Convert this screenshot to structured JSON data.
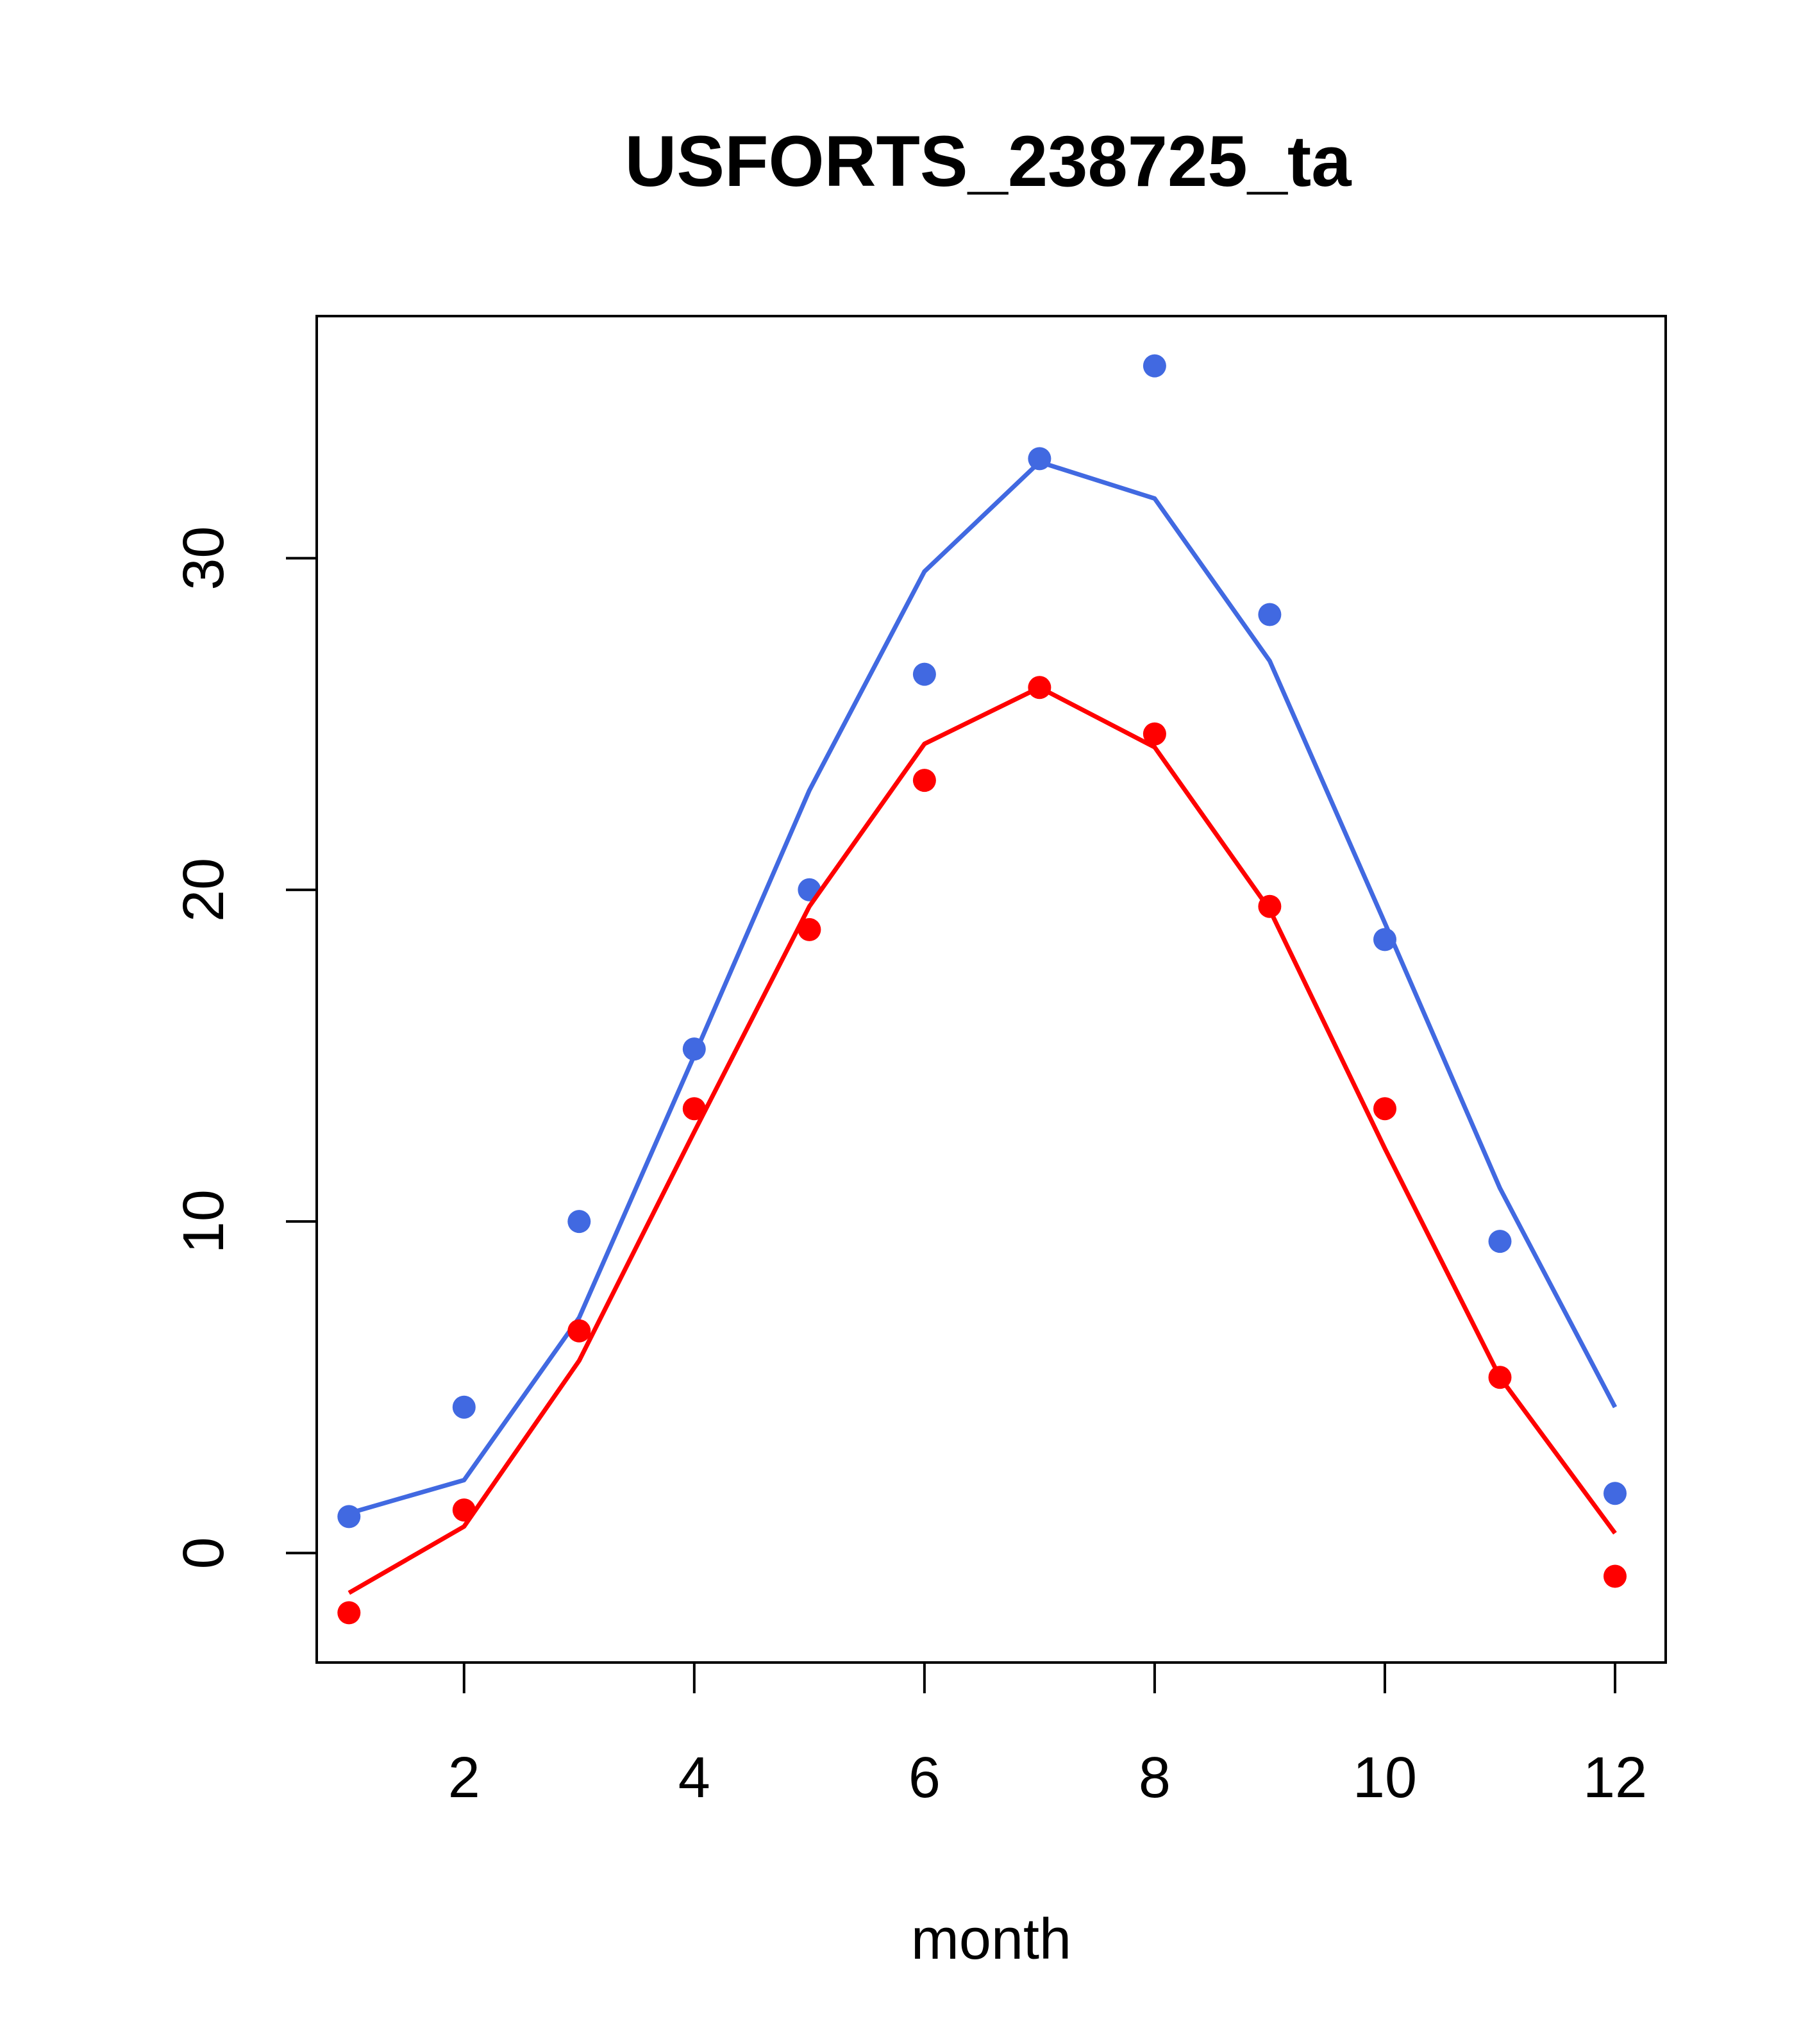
{
  "chart_data": {
    "type": "line",
    "title": "USFORTS_238725_ta",
    "xlabel": "month",
    "ylabel": "",
    "xlim": [
      0.72,
      12.44
    ],
    "ylim": [
      -3.3,
      37.3
    ],
    "x_ticks": [
      2,
      4,
      6,
      8,
      10,
      12
    ],
    "y_ticks": [
      0,
      10,
      20,
      30
    ],
    "grid": false,
    "x": [
      1,
      2,
      3,
      4,
      5,
      6,
      7,
      8,
      9,
      10,
      11,
      12
    ],
    "series": [
      {
        "color": "#4169E1",
        "points": [
          1.1,
          4.4,
          10.0,
          15.2,
          20.0,
          26.5,
          33.0,
          35.8,
          28.3,
          18.5,
          9.4,
          1.8
        ],
        "line": [
          1.2,
          2.2,
          7.1,
          15.0,
          23.0,
          29.6,
          32.9,
          31.8,
          26.9,
          19.0,
          11.0,
          4.4
        ]
      },
      {
        "color": "#FF0000",
        "points": [
          -1.8,
          1.3,
          6.7,
          13.4,
          18.8,
          23.3,
          26.1,
          24.7,
          19.5,
          13.4,
          5.3,
          -0.7
        ],
        "line": [
          -1.2,
          0.8,
          5.8,
          12.7,
          19.5,
          24.4,
          26.1,
          24.3,
          19.4,
          12.2,
          5.3,
          0.6
        ]
      }
    ]
  }
}
